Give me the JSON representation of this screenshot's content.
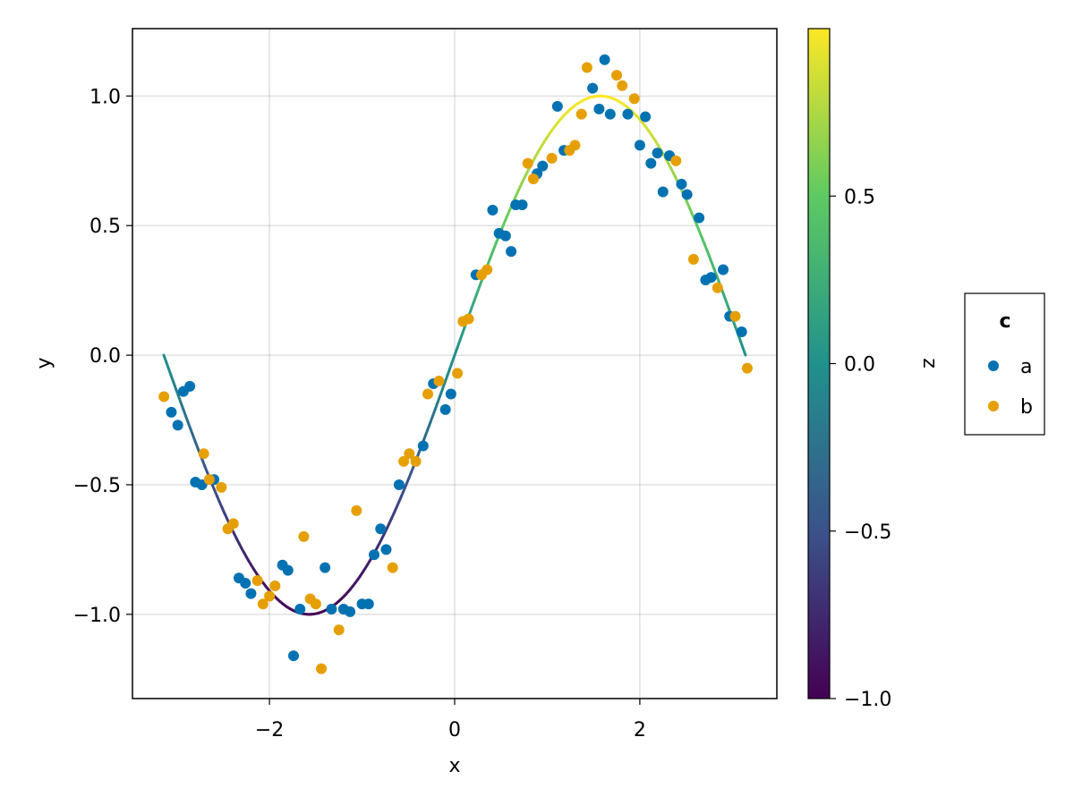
{
  "chart_data": {
    "type": "scatter",
    "xlabel": "x",
    "ylabel": "y",
    "xlim": [
      -3.48,
      3.48
    ],
    "ylim": [
      -1.325,
      1.26
    ],
    "grid": true,
    "xticks": [
      {
        "value": -2,
        "label": "−2"
      },
      {
        "value": 0,
        "label": "0"
      },
      {
        "value": 2,
        "label": "2"
      }
    ],
    "yticks": [
      {
        "value": -1.0,
        "label": "−1.0"
      },
      {
        "value": -0.5,
        "label": "−0.5"
      },
      {
        "value": 0.0,
        "label": "0.0"
      },
      {
        "value": 0.5,
        "label": "0.5"
      },
      {
        "value": 1.0,
        "label": "1.0"
      }
    ],
    "line": {
      "function": "sin(x)",
      "x_range": [
        -3.1416,
        3.1416
      ],
      "color_by": "z = sin(x)",
      "colormap": "viridis"
    },
    "colorbar": {
      "label": "z",
      "range": [
        -1.0,
        1.0
      ],
      "colormap": [
        "#440154",
        "#3b528b",
        "#21918c",
        "#5ec962",
        "#fde725"
      ],
      "ticks": [
        {
          "value": -1.0,
          "label": "−1.0"
        },
        {
          "value": -0.5,
          "label": "−0.5"
        },
        {
          "value": 0.0,
          "label": "0.0"
        },
        {
          "value": 0.5,
          "label": "0.5"
        }
      ]
    },
    "legend": {
      "title": "c",
      "placement": "right",
      "entries": [
        {
          "label": "a",
          "color": "#0072b2"
        },
        {
          "label": "b",
          "color": "#e69f00"
        }
      ]
    },
    "series": [
      {
        "name": "a",
        "color": "#0072b2",
        "points": [
          [
            -3.06,
            -0.22
          ],
          [
            -2.99,
            -0.27
          ],
          [
            -2.93,
            -0.14
          ],
          [
            -2.86,
            -0.12
          ],
          [
            -2.8,
            -0.49
          ],
          [
            -2.73,
            -0.5
          ],
          [
            -2.6,
            -0.48
          ],
          [
            -2.33,
            -0.86
          ],
          [
            -2.26,
            -0.88
          ],
          [
            -2.2,
            -0.92
          ],
          [
            -1.86,
            -0.81
          ],
          [
            -1.8,
            -0.83
          ],
          [
            -1.74,
            -1.16
          ],
          [
            -1.67,
            -0.98
          ],
          [
            -1.4,
            -0.82
          ],
          [
            -1.33,
            -0.98
          ],
          [
            -1.2,
            -0.98
          ],
          [
            -1.13,
            -0.99
          ],
          [
            -1.0,
            -0.96
          ],
          [
            -0.93,
            -0.96
          ],
          [
            -0.87,
            -0.77
          ],
          [
            -0.8,
            -0.67
          ],
          [
            -0.74,
            -0.75
          ],
          [
            -0.6,
            -0.5
          ],
          [
            -0.34,
            -0.35
          ],
          [
            -0.23,
            -0.11
          ],
          [
            -0.1,
            -0.21
          ],
          [
            -0.04,
            -0.15
          ],
          [
            0.23,
            0.31
          ],
          [
            0.41,
            0.56
          ],
          [
            0.48,
            0.47
          ],
          [
            0.55,
            0.46
          ],
          [
            0.61,
            0.4
          ],
          [
            0.66,
            0.58
          ],
          [
            0.73,
            0.58
          ],
          [
            0.89,
            0.7
          ],
          [
            0.95,
            0.73
          ],
          [
            1.11,
            0.96
          ],
          [
            1.18,
            0.79
          ],
          [
            1.49,
            1.03
          ],
          [
            1.56,
            0.95
          ],
          [
            1.62,
            1.14
          ],
          [
            1.68,
            0.93
          ],
          [
            1.87,
            0.93
          ],
          [
            2.0,
            0.81
          ],
          [
            2.06,
            0.92
          ],
          [
            2.12,
            0.74
          ],
          [
            2.19,
            0.78
          ],
          [
            2.25,
            0.63
          ],
          [
            2.32,
            0.77
          ],
          [
            2.45,
            0.66
          ],
          [
            2.51,
            0.62
          ],
          [
            2.64,
            0.53
          ],
          [
            2.71,
            0.29
          ],
          [
            2.77,
            0.3
          ],
          [
            2.9,
            0.33
          ],
          [
            2.97,
            0.15
          ],
          [
            3.1,
            0.09
          ]
        ]
      },
      {
        "name": "b",
        "color": "#e69f00",
        "points": [
          [
            -3.14,
            -0.16
          ],
          [
            -2.71,
            -0.38
          ],
          [
            -2.65,
            -0.48
          ],
          [
            -2.52,
            -0.51
          ],
          [
            -2.45,
            -0.67
          ],
          [
            -2.39,
            -0.65
          ],
          [
            -2.13,
            -0.87
          ],
          [
            -2.07,
            -0.96
          ],
          [
            -2.0,
            -0.93
          ],
          [
            -1.94,
            -0.89
          ],
          [
            -1.63,
            -0.7
          ],
          [
            -1.56,
            -0.94
          ],
          [
            -1.5,
            -0.96
          ],
          [
            -1.44,
            -1.21
          ],
          [
            -1.25,
            -1.06
          ],
          [
            -1.06,
            -0.6
          ],
          [
            -0.67,
            -0.82
          ],
          [
            -0.55,
            -0.41
          ],
          [
            -0.49,
            -0.38
          ],
          [
            -0.42,
            -0.41
          ],
          [
            -0.29,
            -0.15
          ],
          [
            -0.17,
            -0.1
          ],
          [
            0.03,
            -0.07
          ],
          [
            0.09,
            0.13
          ],
          [
            0.15,
            0.14
          ],
          [
            0.29,
            0.31
          ],
          [
            0.35,
            0.33
          ],
          [
            0.79,
            0.74
          ],
          [
            0.85,
            0.68
          ],
          [
            1.05,
            0.76
          ],
          [
            1.24,
            0.79
          ],
          [
            1.3,
            0.81
          ],
          [
            1.37,
            0.93
          ],
          [
            1.43,
            1.11
          ],
          [
            1.75,
            1.08
          ],
          [
            1.81,
            1.04
          ],
          [
            1.94,
            0.99
          ],
          [
            2.39,
            0.75
          ],
          [
            2.58,
            0.37
          ],
          [
            2.84,
            0.26
          ],
          [
            3.03,
            0.15
          ],
          [
            3.16,
            -0.05
          ]
        ]
      }
    ]
  }
}
